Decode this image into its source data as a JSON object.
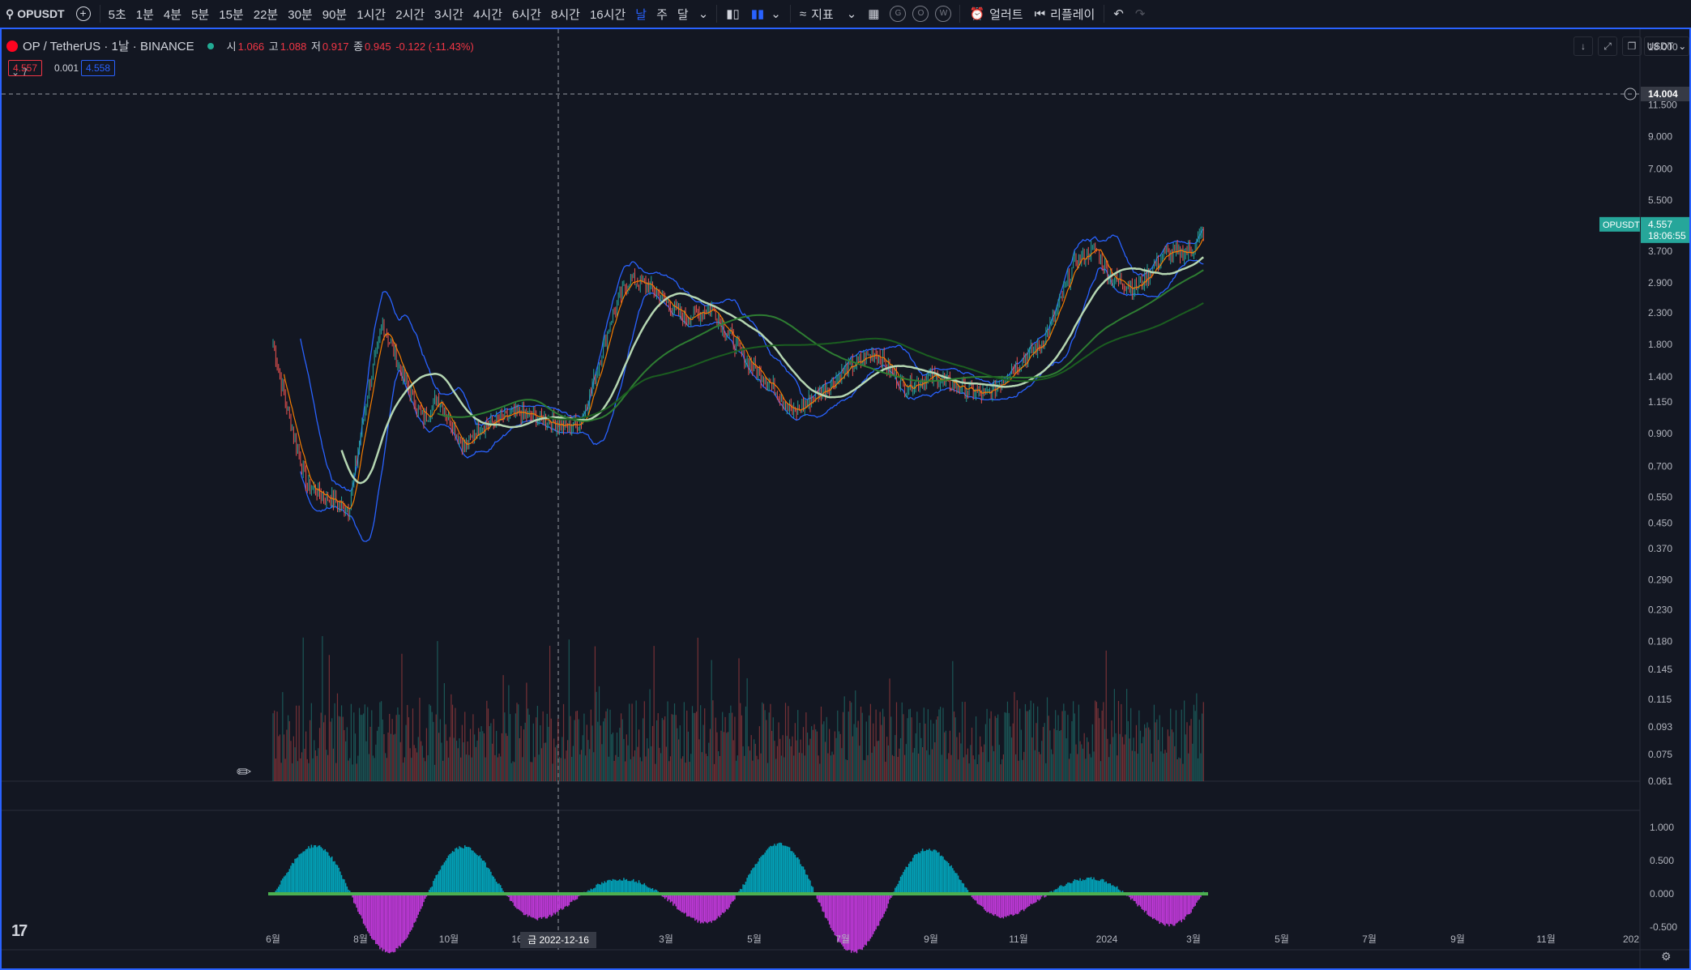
{
  "toolbar": {
    "symbol": "OPUSDT",
    "intervals": [
      "5초",
      "1분",
      "4분",
      "5분",
      "15분",
      "22분",
      "30분",
      "90분",
      "1시간",
      "2시간",
      "3시간",
      "4시간",
      "6시간",
      "8시간",
      "16시간",
      "날",
      "주",
      "달"
    ],
    "active_interval": "날",
    "indicators_label": "지표",
    "circle_buttons": [
      "G",
      "O",
      "W"
    ],
    "alert_label": "얼러트",
    "replay_label": "리플레이"
  },
  "legend": {
    "title": "OP / TetherUS · 1날 · BINANCE",
    "open_label": "시",
    "open": "1.066",
    "high_label": "고",
    "high": "1.088",
    "low_label": "저",
    "low": "0.917",
    "close_label": "종",
    "close": "0.945",
    "change": "-0.122 (-11.43%)",
    "bid": "4.557",
    "spread": "0.001",
    "ask": "4.558",
    "collapse_label": "7"
  },
  "price_axis": {
    "currency": "USDT",
    "ticks": [
      "18.000",
      "14.004",
      "11.500",
      "9.000",
      "7.000",
      "5.500",
      "4.557",
      "3.700",
      "2.900",
      "2.300",
      "1.800",
      "1.400",
      "1.150",
      "0.900",
      "0.700",
      "0.550",
      "0.450",
      "0.370",
      "0.290",
      "0.230",
      "0.180",
      "0.145",
      "0.115",
      "0.093",
      "0.075",
      "0.061"
    ],
    "crosshair_price": "14.004",
    "last_symbol": "OPUSDT",
    "last_price": "4.557",
    "countdown": "18:06:55"
  },
  "oscillator_axis": {
    "ticks": [
      "1.000",
      "0.500",
      "0.000",
      "-0.500"
    ]
  },
  "time_axis": {
    "labels": [
      "6월",
      "8월",
      "10월",
      "16",
      "3월",
      "5월",
      "7월",
      "9월",
      "11월",
      "2024",
      "3월",
      "5월",
      "7월",
      "9월",
      "11월",
      "202"
    ],
    "crosshair_date": "금 2022-12-16"
  },
  "colors": {
    "background": "#131722",
    "up": "#26a69a",
    "down": "#ef5350",
    "bb": "#2962ff",
    "accent": "#2962ff"
  },
  "icons": [
    "search-icon",
    "plus-icon",
    "candle-icon",
    "indicator-icon",
    "layout-icon",
    "alarm-icon",
    "replay-icon",
    "undo-icon",
    "redo-icon",
    "tradingview-logo-icon"
  ]
}
